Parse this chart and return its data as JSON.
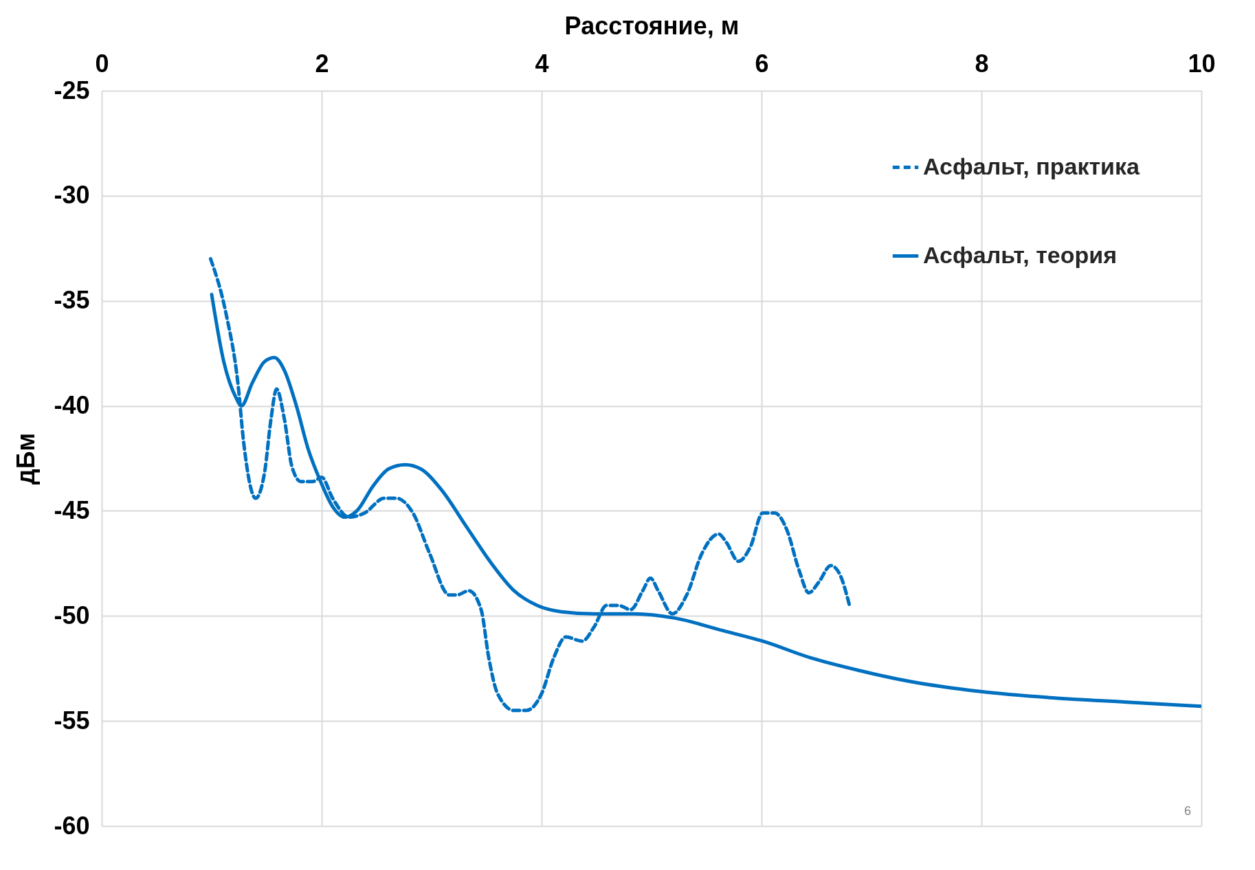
{
  "chart_data": {
    "type": "line",
    "xlabel": "Расстояние, м",
    "ylabel": "дБм",
    "xlim": [
      0,
      10
    ],
    "xticks": [
      0,
      2,
      4,
      6,
      8,
      10
    ],
    "ylim": [
      -60,
      -25
    ],
    "yticks": [
      -60,
      -55,
      -50,
      -45,
      -40,
      -35,
      -30,
      -25
    ],
    "grid": true,
    "legend": "top right",
    "annotations": [
      "6"
    ],
    "series": [
      {
        "name": "Асфальт, практика",
        "color": "#0070c0",
        "line_style": "dashed",
        "x": [
          0.99,
          1.13,
          1.24,
          1.29,
          1.4,
          1.48,
          1.54,
          1.59,
          1.66,
          1.73,
          1.81,
          1.92,
          2.0,
          2.1,
          2.25,
          2.39,
          2.57,
          2.68,
          2.83,
          2.98,
          3.16,
          3.23,
          3.34,
          3.45,
          3.52,
          3.6,
          3.75,
          3.86,
          4.0,
          4.11,
          4.22,
          4.37,
          4.48,
          4.59,
          4.7,
          4.81,
          4.92,
          4.99,
          5.06,
          5.19,
          5.32,
          5.46,
          5.61,
          5.68,
          5.79,
          5.9,
          6.01,
          6.12,
          6.23,
          6.34,
          6.43,
          6.52,
          6.63,
          6.71,
          6.8
        ],
        "values": [
          -33.0,
          -35.6,
          -39.0,
          -41.7,
          -44.4,
          -43.2,
          -40.6,
          -39.2,
          -40.6,
          -42.9,
          -43.6,
          -43.6,
          -43.4,
          -44.4,
          -45.3,
          -45.1,
          -44.4,
          -44.4,
          -45.1,
          -47.0,
          -49.0,
          -49.0,
          -48.8,
          -49.7,
          -52.0,
          -53.7,
          -54.5,
          -54.5,
          -53.7,
          -52.0,
          -51.0,
          -51.2,
          -50.5,
          -49.5,
          -49.5,
          -49.7,
          -48.8,
          -48.2,
          -48.8,
          -49.9,
          -49.0,
          -47.0,
          -46.1,
          -46.5,
          -47.4,
          -46.7,
          -45.1,
          -45.1,
          -45.9,
          -47.8,
          -48.9,
          -48.4,
          -47.6,
          -48.0,
          -49.5
        ]
      },
      {
        "name": "Асфальт, теория",
        "color": "#0070c0",
        "line_style": "solid",
        "x": [
          1.0,
          1.11,
          1.22,
          1.27,
          1.37,
          1.48,
          1.57,
          1.66,
          1.77,
          1.88,
          1.99,
          2.1,
          2.21,
          2.32,
          2.47,
          2.61,
          2.76,
          2.9,
          3.09,
          3.31,
          3.53,
          3.75,
          3.96,
          4.18,
          4.48,
          4.84,
          5.21,
          5.65,
          6.01,
          6.45,
          6.89,
          7.33,
          7.99,
          8.65,
          9.32,
          10.0
        ],
        "values": [
          -34.7,
          -37.9,
          -39.6,
          -40.0,
          -38.9,
          -37.9,
          -37.7,
          -38.3,
          -40.0,
          -42.1,
          -43.6,
          -44.8,
          -45.3,
          -45.0,
          -43.8,
          -43.0,
          -42.8,
          -43.0,
          -44.0,
          -45.7,
          -47.4,
          -48.8,
          -49.5,
          -49.8,
          -49.9,
          -49.9,
          -50.1,
          -50.7,
          -51.2,
          -52.0,
          -52.6,
          -53.1,
          -53.6,
          -53.9,
          -54.1,
          -54.3
        ]
      }
    ]
  }
}
